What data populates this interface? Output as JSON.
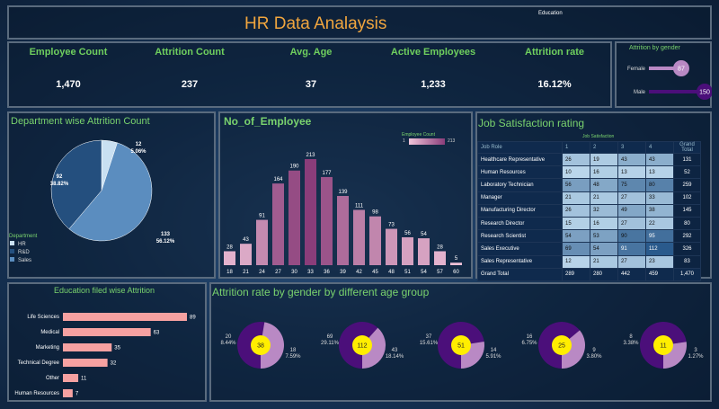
{
  "header": {
    "title": "HR Data Analaysis",
    "education_label": "Education"
  },
  "kpis": {
    "employee_count": {
      "label": "Employee Count",
      "value": "1,470"
    },
    "attrition_count": {
      "label": "Attrition Count",
      "value": "237"
    },
    "avg_age": {
      "label": "Avg. Age",
      "value": "37"
    },
    "active_employees": {
      "label": "Active Employees",
      "value": "1,233"
    },
    "attrition_rate": {
      "label": "Attrition rate",
      "value": "16.12%"
    }
  },
  "colors": {
    "accent_green": "#6fcf5e",
    "title_orange": "#f0a53e",
    "pie_hr": "#c9e0f2",
    "pie_rd": "#244f7e",
    "pie_sales": "#5b8dbf",
    "bar_gradient_low": "#f0c4d9",
    "bar_gradient_high": "#8a3d7a",
    "edu_bar": "#f6a1a1",
    "donut_male": "#4b0f7a",
    "donut_female": "#b989c4",
    "donut_center": "#ffee00"
  },
  "chart_data": [
    {
      "type": "bar",
      "panel": "attrition_by_gender",
      "title": "Attrition by gender",
      "categories": [
        "Female",
        "Male"
      ],
      "values": [
        87,
        150
      ]
    },
    {
      "type": "pie",
      "panel": "department_attrition",
      "title": "Department wise Attrition Count",
      "legend_title": "Department",
      "legend_position": "bottom-left",
      "categories": [
        "HR",
        "R&D",
        "Sales"
      ],
      "values": [
        12,
        133,
        92
      ],
      "percent_labels": [
        "5.06%",
        "56.12%",
        "38.82%"
      ],
      "value_labels": [
        "12",
        "133",
        "92"
      ]
    },
    {
      "type": "bar",
      "panel": "no_of_employee",
      "title": "No_of_Employee",
      "legend_title": "Employee Count",
      "legend_range": [
        "1",
        "213"
      ],
      "categories": [
        "18",
        "21",
        "24",
        "27",
        "30",
        "33",
        "36",
        "39",
        "42",
        "45",
        "48",
        "51",
        "54",
        "57",
        "60"
      ],
      "values": [
        28,
        43,
        91,
        164,
        190,
        213,
        177,
        139,
        111,
        98,
        73,
        56,
        54,
        28,
        5
      ]
    },
    {
      "type": "table",
      "panel": "job_satisfaction",
      "title": "Job Satisfaction rating",
      "column_group": "Job Satisfaction",
      "columns": [
        "Job Role",
        "1",
        "2",
        "3",
        "4",
        "Grand Total"
      ],
      "rows": [
        [
          "Healthcare Representative",
          "26",
          "19",
          "43",
          "43",
          "131"
        ],
        [
          "Human Resources",
          "10",
          "16",
          "13",
          "13",
          "52"
        ],
        [
          "Laboratory Technician",
          "56",
          "48",
          "75",
          "80",
          "259"
        ],
        [
          "Manager",
          "21",
          "21",
          "27",
          "33",
          "102"
        ],
        [
          "Manufacturing Director",
          "26",
          "32",
          "49",
          "38",
          "145"
        ],
        [
          "Research Director",
          "15",
          "16",
          "27",
          "22",
          "80"
        ],
        [
          "Research Scientist",
          "54",
          "53",
          "90",
          "95",
          "292"
        ],
        [
          "Sales Executive",
          "69",
          "54",
          "91",
          "112",
          "326"
        ],
        [
          "Sales Representative",
          "12",
          "21",
          "27",
          "23",
          "83"
        ]
      ],
      "total_row": [
        "Grand Total",
        "289",
        "280",
        "442",
        "459",
        "1,470"
      ]
    },
    {
      "type": "bar",
      "panel": "education_attrition",
      "title": "Education filed wise Attrition",
      "categories": [
        "Life Sciences",
        "Medical",
        "Marketing",
        "Technical Degree",
        "Other",
        "Human Resources"
      ],
      "values": [
        89,
        63,
        35,
        32,
        11,
        7
      ]
    },
    {
      "type": "pie",
      "panel": "attrition_gender_age",
      "title": "Attrition rate by gender by different age group",
      "groups": [
        {
          "left_value": "20",
          "left_pct": "8.44%",
          "center": "38",
          "right_value": "18",
          "right_pct": "7.59%"
        },
        {
          "left_value": "69",
          "left_pct": "29.11%",
          "center": "112",
          "right_value": "43",
          "right_pct": "18.14%"
        },
        {
          "left_value": "37",
          "left_pct": "15.61%",
          "center": "51",
          "right_value": "14",
          "right_pct": "5.91%"
        },
        {
          "left_value": "16",
          "left_pct": "6.75%",
          "center": "25",
          "right_value": "9",
          "right_pct": "3.80%"
        },
        {
          "left_value": "8",
          "left_pct": "3.38%",
          "center": "11",
          "right_value": "3",
          "right_pct": "1.27%"
        }
      ]
    }
  ]
}
